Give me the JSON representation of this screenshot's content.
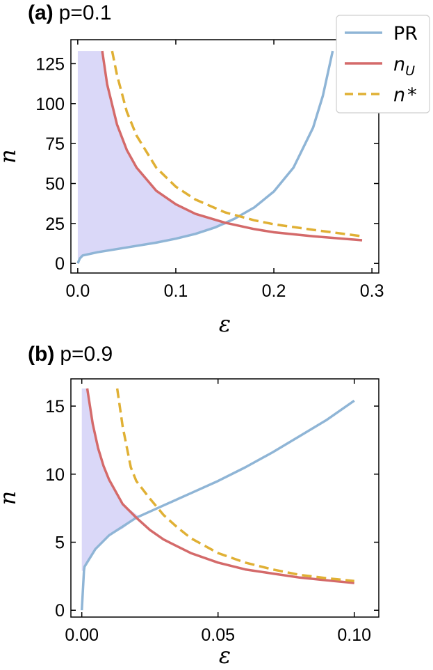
{
  "colors": {
    "PR": "#8fb5d6",
    "nU": "#d46a6a",
    "nstar": "#e0b034",
    "shade": "#dad8f8"
  },
  "chart_data": [
    {
      "type": "line",
      "title_letter": "(a)",
      "title_text": "p=0.1",
      "xlabel": "ε",
      "ylabel": "n",
      "xlim": [
        -0.007,
        0.307
      ],
      "ylim": [
        -6,
        140
      ],
      "xticks": [
        0.0,
        0.1,
        0.2,
        0.3
      ],
      "xtick_labels": [
        "0.0",
        "0.1",
        "0.2",
        "0.3"
      ],
      "yticks": [
        0,
        25,
        50,
        75,
        100,
        125
      ],
      "ytick_labels": [
        "0",
        "25",
        "50",
        "75",
        "100",
        "125"
      ],
      "grid": false,
      "legend": {
        "position": "top-right",
        "entries": [
          "PR",
          "n_U",
          "n*"
        ]
      },
      "series": [
        {
          "name": "PR",
          "style": "solid",
          "color_key": "PR",
          "x": [
            0.0,
            0.002,
            0.005,
            0.02,
            0.05,
            0.08,
            0.1,
            0.12,
            0.14,
            0.16,
            0.18,
            0.2,
            0.22,
            0.24,
            0.25,
            0.26
          ],
          "y": [
            0,
            3,
            5,
            7,
            10,
            13,
            15.5,
            18.5,
            22.5,
            28,
            35,
            45,
            60,
            85,
            105,
            133
          ]
        },
        {
          "name": "n_U",
          "style": "solid",
          "color_key": "nU",
          "x": [
            0.025,
            0.03,
            0.04,
            0.05,
            0.06,
            0.08,
            0.1,
            0.12,
            0.15,
            0.18,
            0.2,
            0.24,
            0.29
          ],
          "y": [
            133,
            112,
            87,
            71,
            60,
            45.5,
            37,
            31,
            25.5,
            21.5,
            19.5,
            17,
            14.5
          ]
        },
        {
          "name": "n*",
          "style": "dashed",
          "color_key": "nstar",
          "x": [
            0.035,
            0.04,
            0.05,
            0.06,
            0.08,
            0.1,
            0.12,
            0.15,
            0.18,
            0.2,
            0.24,
            0.29
          ],
          "y": [
            133,
            118,
            95,
            80,
            60,
            48,
            40,
            32,
            27,
            24.5,
            21,
            17
          ]
        }
      ],
      "shaded_region": {
        "x": [
          0.0,
          0.0,
          0.025,
          0.03,
          0.04,
          0.05,
          0.06,
          0.08,
          0.1,
          0.12,
          0.14,
          0.155,
          0.14,
          0.12,
          0.1,
          0.08,
          0.05,
          0.02,
          0.005,
          0.002
        ],
        "y": [
          3,
          133,
          133,
          112,
          87,
          71,
          60,
          45.5,
          37,
          31,
          27,
          25,
          22.5,
          18.5,
          15.5,
          13,
          10,
          7,
          5,
          3
        ]
      }
    },
    {
      "type": "line",
      "title_letter": "(b)",
      "title_text": "p=0.9",
      "xlabel": "ε",
      "ylabel": "n",
      "xlim": [
        -0.004,
        0.109
      ],
      "ylim": [
        -0.5,
        17
      ],
      "xticks": [
        0.0,
        0.05,
        0.1
      ],
      "xtick_labels": [
        "0.00",
        "0.05",
        "0.10"
      ],
      "yticks": [
        0,
        5,
        10,
        15
      ],
      "ytick_labels": [
        "0",
        "5",
        "10",
        "15"
      ],
      "grid": false,
      "series": [
        {
          "name": "PR",
          "style": "solid",
          "color_key": "PR",
          "x": [
            0.0,
            0.0008,
            0.001,
            0.005,
            0.01,
            0.02,
            0.03,
            0.04,
            0.05,
            0.06,
            0.07,
            0.08,
            0.09,
            0.1
          ],
          "y": [
            0,
            2.9,
            3.2,
            4.5,
            5.5,
            6.8,
            7.7,
            8.6,
            9.5,
            10.5,
            11.6,
            12.8,
            14,
            15.4
          ]
        },
        {
          "name": "n_U",
          "style": "solid",
          "color_key": "nU",
          "x": [
            0.002,
            0.004,
            0.006,
            0.008,
            0.01,
            0.015,
            0.02,
            0.025,
            0.03,
            0.04,
            0.05,
            0.06,
            0.07,
            0.08,
            0.09,
            0.1
          ],
          "y": [
            16.3,
            13.7,
            11.9,
            10.6,
            9.6,
            7.8,
            6.8,
            5.9,
            5.2,
            4.2,
            3.5,
            3.0,
            2.7,
            2.4,
            2.2,
            2.0
          ]
        },
        {
          "name": "n*",
          "style": "dashed",
          "color_key": "nstar",
          "x": [
            0.013,
            0.015,
            0.018,
            0.02,
            0.025,
            0.03,
            0.035,
            0.04,
            0.05,
            0.06,
            0.07,
            0.08,
            0.09,
            0.1
          ],
          "y": [
            16.3,
            13.5,
            10.5,
            9.5,
            8.2,
            7.0,
            6.1,
            5.3,
            4.2,
            3.5,
            3.0,
            2.6,
            2.35,
            2.15
          ]
        }
      ],
      "shaded_region": {
        "x": [
          0.0,
          0.0,
          0.002,
          0.004,
          0.006,
          0.008,
          0.01,
          0.015,
          0.021,
          0.015,
          0.01,
          0.005,
          0.001,
          0.0008
        ],
        "y": [
          2.9,
          16.3,
          16.3,
          13.7,
          11.9,
          10.6,
          9.6,
          7.8,
          6.9,
          6.0,
          5.5,
          4.5,
          3.2,
          2.9
        ]
      }
    }
  ]
}
